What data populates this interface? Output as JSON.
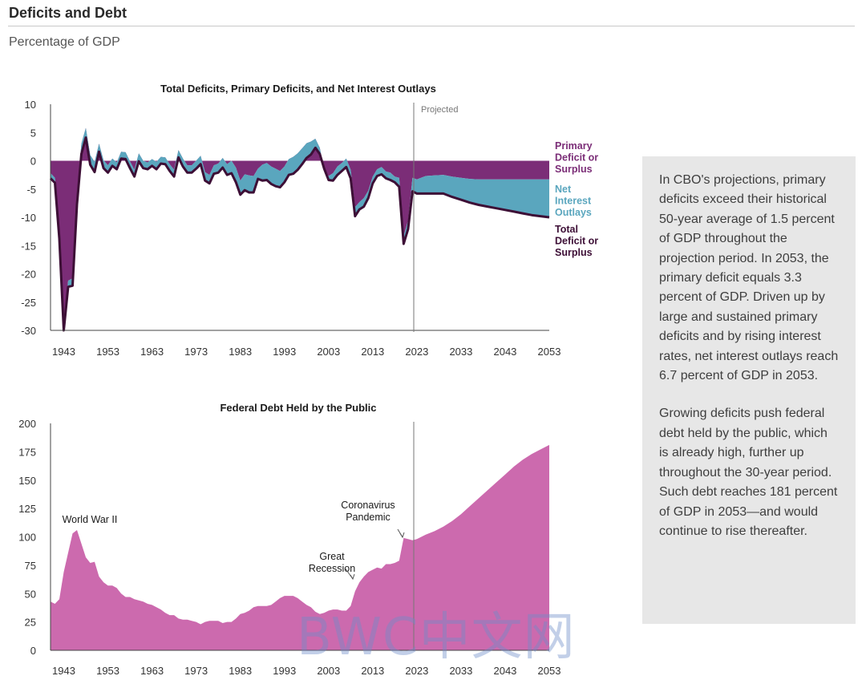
{
  "header": {
    "title": "Deficits and Debt",
    "subtitle": "Percentage of GDP"
  },
  "sidebar": {
    "paragraphs": [
      "In CBO's projections, primary deficits exceed their historical 50-year average of 1.5 percent of GDP throughout the projection period. In 2053, the primary deficit equals 3.3 percent of GDP. Driven up by large and sustained primary deficits and by rising interest rates, net interest outlays reach 6.7 percent of GDP in 2053.",
      "Growing deficits push federal debt held by the public, which is already high, further up throughout the 30-year period. Such debt reaches 181 percent of GDP in 2053—and would continue to rise thereafter."
    ]
  },
  "watermark": "BWC中文网",
  "colors": {
    "primary": "#7b2d77",
    "interest": "#5aa6be",
    "total": "#3d0f36",
    "debt": "#cc6aae",
    "axis": "#444444",
    "sidebar_bg": "#e7e7e7"
  },
  "chart_data": [
    {
      "type": "area",
      "title": "Total Deficits, Primary Deficits, and Net Interest Outlays",
      "xlabel": "",
      "ylabel": "Percentage of GDP",
      "xlim": [
        1940,
        2053
      ],
      "ylim": [
        -30,
        10
      ],
      "xticks": [
        "1943",
        "1953",
        "1963",
        "1973",
        "1983",
        "1993",
        "2003",
        "2013",
        "2023",
        "2033",
        "2043",
        "2053"
      ],
      "yticks": [
        "10",
        "5",
        "0",
        "-5",
        "-10",
        "-15",
        "-20",
        "-25",
        "-30"
      ],
      "projected_start": 2023,
      "projected_label": "Projected",
      "x": [
        1940,
        1941,
        1942,
        1943,
        1944,
        1945,
        1946,
        1947,
        1948,
        1949,
        1950,
        1951,
        1952,
        1953,
        1954,
        1955,
        1956,
        1957,
        1958,
        1959,
        1960,
        1961,
        1962,
        1963,
        1964,
        1965,
        1966,
        1967,
        1968,
        1969,
        1970,
        1971,
        1972,
        1973,
        1974,
        1975,
        1976,
        1977,
        1978,
        1979,
        1980,
        1981,
        1982,
        1983,
        1984,
        1985,
        1986,
        1987,
        1988,
        1989,
        1990,
        1991,
        1992,
        1993,
        1994,
        1995,
        1996,
        1997,
        1998,
        1999,
        2000,
        2001,
        2002,
        2003,
        2004,
        2005,
        2006,
        2007,
        2008,
        2009,
        2010,
        2011,
        2012,
        2013,
        2014,
        2015,
        2016,
        2017,
        2018,
        2019,
        2020,
        2021,
        2022,
        2023,
        2025,
        2027,
        2029,
        2031,
        2033,
        2035,
        2037,
        2039,
        2041,
        2043,
        2045,
        2047,
        2049,
        2051,
        2053
      ],
      "series": [
        {
          "name": "Primary Deficit or Surplus",
          "values": [
            -2.2,
            -3.0,
            -13.0,
            -29.0,
            -21.2,
            -20.8,
            -6.0,
            3.0,
            5.8,
            1.0,
            -0.2,
            3.0,
            0.1,
            -0.8,
            0.4,
            -0.3,
            1.6,
            1.5,
            -0.1,
            -1.6,
            1.3,
            0.0,
            -0.3,
            0.3,
            -0.2,
            0.7,
            0.6,
            -0.6,
            -1.6,
            1.9,
            0.4,
            -0.8,
            -0.8,
            0.0,
            0.9,
            -2.0,
            -2.5,
            -0.8,
            -0.5,
            0.5,
            -0.6,
            0.0,
            -1.2,
            -3.5,
            -2.4,
            -2.6,
            -2.7,
            -1.4,
            -0.7,
            -0.4,
            -1.0,
            -1.4,
            -1.8,
            -1.0,
            0.3,
            0.7,
            1.3,
            2.2,
            3.1,
            3.4,
            3.9,
            2.3,
            -1.7,
            -2.7,
            -2.2,
            -1.0,
            -0.4,
            0.4,
            -1.6,
            -8.2,
            -7.3,
            -6.6,
            -5.3,
            -2.8,
            -1.5,
            -1.1,
            -1.9,
            -2.1,
            -2.8,
            -3.0,
            -13.3,
            -10.6,
            -3.0,
            -3.3,
            -2.7,
            -2.6,
            -2.5,
            -2.8,
            -3.0,
            -3.2,
            -3.3,
            -3.3,
            -3.3,
            -3.3,
            -3.3,
            -3.3,
            -3.3,
            -3.3,
            -3.3
          ]
        },
        {
          "name": "Net Interest Outlays",
          "values": [
            0.9,
            0.9,
            0.8,
            1.0,
            1.1,
            1.3,
            1.7,
            1.8,
            1.7,
            1.7,
            1.8,
            1.4,
            1.4,
            1.3,
            1.3,
            1.2,
            1.2,
            1.2,
            1.2,
            1.2,
            1.4,
            1.3,
            1.2,
            1.2,
            1.3,
            1.2,
            1.2,
            1.2,
            1.2,
            1.3,
            1.4,
            1.3,
            1.3,
            1.4,
            1.5,
            1.5,
            1.5,
            1.5,
            1.6,
            1.7,
            1.9,
            2.2,
            2.6,
            2.5,
            2.8,
            3.0,
            2.9,
            2.8,
            2.8,
            3.0,
            3.1,
            3.1,
            2.9,
            2.8,
            2.8,
            3.0,
            2.9,
            2.8,
            2.6,
            2.3,
            2.2,
            1.9,
            1.5,
            1.3,
            1.3,
            1.4,
            1.6,
            1.6,
            1.6,
            1.3,
            1.3,
            1.5,
            1.3,
            1.2,
            1.2,
            1.3,
            1.4,
            1.4,
            1.6,
            1.7,
            1.6,
            1.6,
            1.9,
            2.5,
            3.1,
            3.2,
            3.3,
            3.6,
            3.9,
            4.2,
            4.5,
            4.8,
            5.1,
            5.4,
            5.7,
            6.0,
            6.3,
            6.5,
            6.7
          ]
        },
        {
          "name": "Total Deficit or Surplus",
          "values": [
            -3.1,
            -3.9,
            -13.8,
            -30.0,
            -22.3,
            -22.1,
            -7.7,
            1.2,
            4.1,
            -0.7,
            -2.0,
            1.6,
            -1.3,
            -2.1,
            -0.9,
            -1.5,
            0.4,
            0.3,
            -1.3,
            -2.8,
            -0.1,
            -1.3,
            -1.5,
            -0.9,
            -1.5,
            -0.5,
            -0.6,
            -1.8,
            -2.8,
            0.6,
            -1.0,
            -2.1,
            -2.1,
            -1.4,
            -0.6,
            -3.5,
            -4.0,
            -2.3,
            -2.1,
            -1.2,
            -2.5,
            -2.2,
            -3.8,
            -6.0,
            -5.2,
            -5.6,
            -5.6,
            -3.2,
            -3.5,
            -3.4,
            -4.1,
            -4.5,
            -4.7,
            -3.8,
            -2.5,
            -2.3,
            -1.6,
            -0.6,
            0.5,
            1.1,
            2.3,
            1.2,
            -1.4,
            -3.4,
            -3.5,
            -2.5,
            -1.8,
            -1.1,
            -3.1,
            -9.8,
            -8.6,
            -8.1,
            -6.6,
            -4.0,
            -2.7,
            -2.4,
            -3.1,
            -3.4,
            -3.8,
            -4.6,
            -14.7,
            -12.1,
            -5.4,
            -5.8,
            -5.8,
            -5.8,
            -5.8,
            -6.4,
            -6.9,
            -7.4,
            -7.8,
            -8.1,
            -8.4,
            -8.7,
            -9.0,
            -9.3,
            -9.6,
            -9.8,
            -10.0
          ]
        }
      ],
      "legend": [
        [
          "Primary",
          "Deficit or",
          "Surplus"
        ],
        [
          "Net",
          "Interest",
          "Outlays"
        ],
        [
          "Total",
          "Deficit or",
          "Surplus"
        ]
      ]
    },
    {
      "type": "area",
      "title": "Federal Debt Held by the Public",
      "xlabel": "",
      "ylabel": "Percentage of GDP",
      "xlim": [
        1940,
        2053
      ],
      "ylim": [
        0,
        200
      ],
      "xticks": [
        "1943",
        "1953",
        "1963",
        "1973",
        "1983",
        "1993",
        "2003",
        "2013",
        "2023",
        "2033",
        "2043",
        "2053"
      ],
      "yticks": [
        "200",
        "175",
        "150",
        "125",
        "100",
        "75",
        "50",
        "25",
        "0"
      ],
      "projected_start": 2023,
      "series": [
        {
          "name": "Federal Debt Held by the Public",
          "x": [
            1940,
            1941,
            1942,
            1943,
            1944,
            1945,
            1946,
            1947,
            1948,
            1949,
            1950,
            1951,
            1952,
            1953,
            1954,
            1955,
            1956,
            1957,
            1958,
            1959,
            1960,
            1961,
            1962,
            1963,
            1964,
            1965,
            1966,
            1967,
            1968,
            1969,
            1970,
            1971,
            1972,
            1973,
            1974,
            1975,
            1976,
            1977,
            1978,
            1979,
            1980,
            1981,
            1982,
            1983,
            1984,
            1985,
            1986,
            1987,
            1988,
            1989,
            1990,
            1991,
            1992,
            1993,
            1994,
            1995,
            1996,
            1997,
            1998,
            1999,
            2000,
            2001,
            2002,
            2003,
            2004,
            2005,
            2006,
            2007,
            2008,
            2009,
            2010,
            2011,
            2012,
            2013,
            2014,
            2015,
            2016,
            2017,
            2018,
            2019,
            2020,
            2021,
            2022,
            2023,
            2025,
            2027,
            2029,
            2031,
            2033,
            2035,
            2037,
            2039,
            2041,
            2043,
            2045,
            2047,
            2049,
            2051,
            2053
          ],
          "values": [
            43,
            41,
            45,
            69,
            86,
            103,
            106,
            94,
            82,
            77,
            78,
            65,
            60,
            57,
            57,
            55,
            50,
            47,
            47,
            45,
            44,
            43,
            41,
            40,
            38,
            36,
            33,
            31,
            31,
            28,
            27,
            27,
            26,
            25,
            23,
            25,
            26,
            26,
            26,
            24,
            25,
            25,
            28,
            32,
            33,
            35,
            38,
            39,
            39,
            39,
            40,
            43,
            46,
            48,
            48,
            48,
            46,
            43,
            40,
            38,
            34,
            32,
            33,
            35,
            36,
            36,
            35,
            35,
            39,
            52,
            60,
            65,
            69,
            71,
            73,
            72,
            76,
            76,
            77,
            79,
            99,
            98,
            97,
            98,
            102,
            105,
            109,
            114,
            120,
            127,
            134,
            141,
            148,
            155,
            162,
            168,
            173,
            177,
            181
          ]
        }
      ],
      "annotations": [
        {
          "lines": [
            "World War II"
          ],
          "x": 1946,
          "y": 106
        },
        {
          "lines": [
            "Great",
            "Recession"
          ],
          "x": 2009,
          "y": 60
        },
        {
          "lines": [
            "Coronavirus",
            "Pandemic"
          ],
          "x": 2020,
          "y": 99
        }
      ]
    }
  ]
}
